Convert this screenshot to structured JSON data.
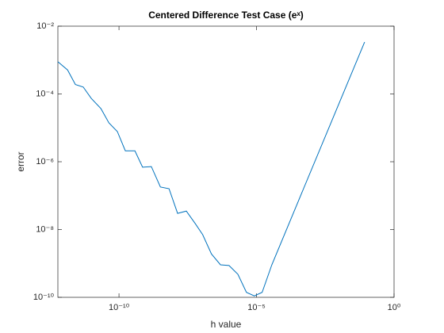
{
  "chart_data": {
    "type": "line",
    "title": "Centered Difference Test Case (eˣ)",
    "x_label": "h value",
    "y_label": "error",
    "x_scale": "log",
    "y_scale": "log",
    "x": [
      6e-13,
      1.35e-12,
      2.6e-12,
      5e-12,
      9.8e-12,
      2.2e-11,
      4.3e-11,
      8.7e-11,
      1.7e-10,
      3.8e-10,
      7.2e-10,
      1.5e-09,
      3.2e-09,
      6.6e-09,
      1.35e-08,
      2.8e-08,
      5.9e-08,
      1.1e-07,
      2.3e-07,
      4.9e-07,
      1e-06,
      2.1e-06,
      4.3e-06,
      8.3e-06,
      1.6e-05,
      3.6e-05,
      0.085
    ],
    "series": [
      {
        "name": "error",
        "color": "#0072bd",
        "values": [
          0.00089,
          0.00051,
          0.00019,
          0.00016,
          7.4e-05,
          3.7e-05,
          1.4e-05,
          7.8e-06,
          2.1e-06,
          2.1e-06,
          6.9e-07,
          7.2e-07,
          1.8e-07,
          1.6e-07,
          3e-08,
          3.5e-08,
          1.5e-08,
          7.1e-09,
          1.9e-09,
          9.1e-10,
          8.7e-10,
          4.8e-10,
          1.4e-10,
          1.1e-10,
          1.4e-10,
          9.1e-10,
          0.0034
        ]
      }
    ],
    "xlim": [
      6e-13,
      1
    ],
    "ylim": [
      1e-10,
      0.01
    ],
    "xticks": [
      {
        "value": 1e-10,
        "label": "10⁻¹⁰"
      },
      {
        "value": 1e-05,
        "label": "10⁻⁵"
      },
      {
        "value": 1,
        "label": "10⁰"
      }
    ],
    "yticks": [
      {
        "value": 1e-10,
        "label": "10⁻¹⁰"
      },
      {
        "value": 1e-08,
        "label": "10⁻⁸"
      },
      {
        "value": 1e-06,
        "label": "10⁻⁶"
      },
      {
        "value": 0.0001,
        "label": "10⁻⁴"
      },
      {
        "value": 0.01,
        "label": "10⁻²"
      }
    ],
    "grid": false
  }
}
